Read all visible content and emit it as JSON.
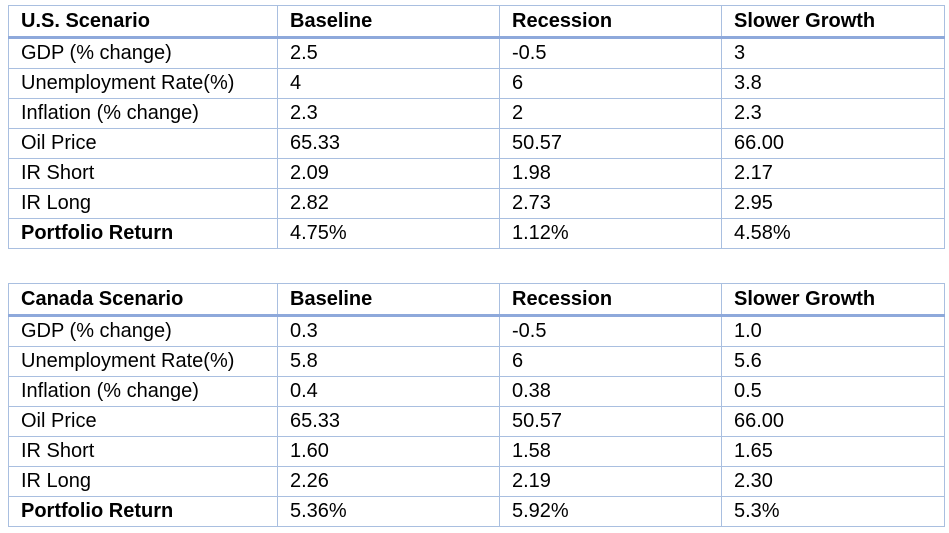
{
  "tables": [
    {
      "headers": [
        "U.S. Scenario",
        "Baseline",
        "Recession",
        "Slower Growth"
      ],
      "rows": [
        {
          "label": "GDP (% change)",
          "values": [
            "2.5",
            "-0.5",
            "3"
          ],
          "bold": false
        },
        {
          "label": "Unemployment Rate(%)",
          "values": [
            "4",
            "6",
            "3.8"
          ],
          "bold": false
        },
        {
          "label": "Inflation (% change)",
          "values": [
            "2.3",
            "2",
            "2.3"
          ],
          "bold": false
        },
        {
          "label": "Oil Price",
          "values": [
            "65.33",
            "50.57",
            "66.00"
          ],
          "bold": false
        },
        {
          "label": "IR Short",
          "values": [
            "2.09",
            "1.98",
            "2.17"
          ],
          "bold": false
        },
        {
          "label": "IR Long",
          "values": [
            "2.82",
            "2.73",
            "2.95"
          ],
          "bold": false
        },
        {
          "label": "Portfolio Return",
          "values": [
            "4.75%",
            "1.12%",
            "4.58%"
          ],
          "bold": true
        }
      ]
    },
    {
      "headers": [
        "Canada Scenario",
        "Baseline",
        "Recession",
        "Slower Growth"
      ],
      "rows": [
        {
          "label": "GDP (% change)",
          "values": [
            "0.3",
            "-0.5",
            "1.0"
          ],
          "bold": false
        },
        {
          "label": "Unemployment Rate(%)",
          "values": [
            "5.8",
            "6",
            "5.6"
          ],
          "bold": false
        },
        {
          "label": "Inflation (% change)",
          "values": [
            "0.4",
            "0.38",
            "0.5"
          ],
          "bold": false
        },
        {
          "label": "Oil Price",
          "values": [
            "65.33",
            "50.57",
            "66.00"
          ],
          "bold": false
        },
        {
          "label": "IR Short",
          "values": [
            "1.60",
            "1.58",
            "1.65"
          ],
          "bold": false
        },
        {
          "label": "IR Long",
          "values": [
            "2.26",
            "2.19",
            "2.30"
          ],
          "bold": false
        },
        {
          "label": "Portfolio Return",
          "values": [
            "5.36%",
            "5.92%",
            "5.3%"
          ],
          "bold": true
        }
      ]
    }
  ],
  "colors": {
    "border": "#a9bfe0",
    "header_rule": "#8ea9db"
  }
}
